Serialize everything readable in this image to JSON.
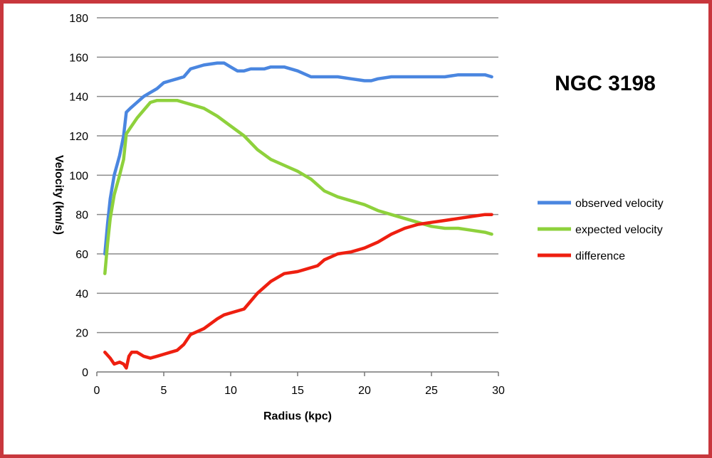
{
  "chart_data": {
    "type": "line",
    "title": "NGC 3198",
    "xlabel": "Radius (kpc)",
    "ylabel": "Velocity (km/s)",
    "xlim": [
      0,
      30
    ],
    "ylim": [
      0,
      180
    ],
    "xticks": [
      0,
      5,
      10,
      15,
      20,
      25,
      30
    ],
    "yticks": [
      0,
      20,
      40,
      60,
      80,
      100,
      120,
      140,
      160,
      180
    ],
    "grid": "horizontal",
    "legend_position": "right",
    "series": [
      {
        "name": "observed velocity",
        "color": "#4a86e0",
        "x": [
          0.6,
          0.8,
          1.0,
          1.3,
          1.7,
          2.0,
          2.2,
          2.5,
          3.0,
          3.5,
          4.0,
          4.5,
          5.0,
          5.5,
          6.0,
          6.5,
          7.0,
          8.0,
          9.0,
          9.5,
          10.0,
          10.5,
          11.0,
          11.5,
          12.0,
          12.5,
          13.0,
          14.0,
          15.0,
          16.0,
          17.0,
          18.0,
          19.0,
          20.0,
          20.5,
          21.0,
          22.0,
          23.0,
          24.0,
          25.0,
          26.0,
          27.0,
          28.0,
          29.0,
          29.5
        ],
        "y": [
          60,
          75,
          88,
          100,
          110,
          120,
          132,
          134,
          137,
          140,
          142,
          144,
          147,
          148,
          149,
          150,
          154,
          156,
          157,
          157,
          155,
          153,
          153,
          154,
          154,
          154,
          155,
          155,
          153,
          150,
          150,
          150,
          149,
          148,
          148,
          149,
          150,
          150,
          150,
          150,
          150,
          151,
          151,
          151,
          150
        ]
      },
      {
        "name": "expected velocity",
        "color": "#8ed13c",
        "x": [
          0.6,
          0.8,
          1.0,
          1.3,
          1.7,
          2.0,
          2.2,
          2.5,
          3.0,
          3.5,
          4.0,
          4.5,
          5.0,
          5.5,
          6.0,
          6.5,
          7.0,
          8.0,
          9.0,
          10.0,
          11.0,
          12.0,
          13.0,
          14.0,
          15.0,
          16.0,
          17.0,
          18.0,
          19.0,
          20.0,
          21.0,
          22.0,
          23.0,
          24.0,
          25.0,
          26.0,
          27.0,
          28.0,
          29.0,
          29.5
        ],
        "y": [
          50,
          65,
          78,
          90,
          100,
          108,
          121,
          124,
          129,
          133,
          137,
          138,
          138,
          138,
          138,
          137,
          136,
          134,
          130,
          125,
          120,
          113,
          108,
          105,
          102,
          98,
          92,
          89,
          87,
          85,
          82,
          80,
          78,
          76,
          74,
          73,
          73,
          72,
          71,
          70
        ]
      },
      {
        "name": "difference",
        "color": "#ee1f10",
        "x": [
          0.6,
          1.0,
          1.3,
          1.7,
          2.0,
          2.2,
          2.4,
          2.6,
          3.0,
          3.5,
          4.0,
          4.5,
          5.0,
          5.5,
          6.0,
          6.5,
          7.0,
          8.0,
          9.0,
          9.5,
          10.0,
          11.0,
          12.0,
          13.0,
          14.0,
          15.0,
          16.0,
          16.5,
          17.0,
          18.0,
          19.0,
          20.0,
          21.0,
          22.0,
          23.0,
          24.0,
          25.0,
          26.0,
          27.0,
          28.0,
          29.0,
          29.5
        ],
        "y": [
          10,
          7,
          4,
          5,
          4,
          2,
          8,
          10,
          10,
          8,
          7,
          8,
          9,
          10,
          11,
          14,
          19,
          22,
          27,
          29,
          30,
          32,
          40,
          46,
          50,
          51,
          53,
          54,
          57,
          60,
          61,
          63,
          66,
          70,
          73,
          75,
          76,
          77,
          78,
          79,
          80,
          80
        ]
      }
    ]
  }
}
